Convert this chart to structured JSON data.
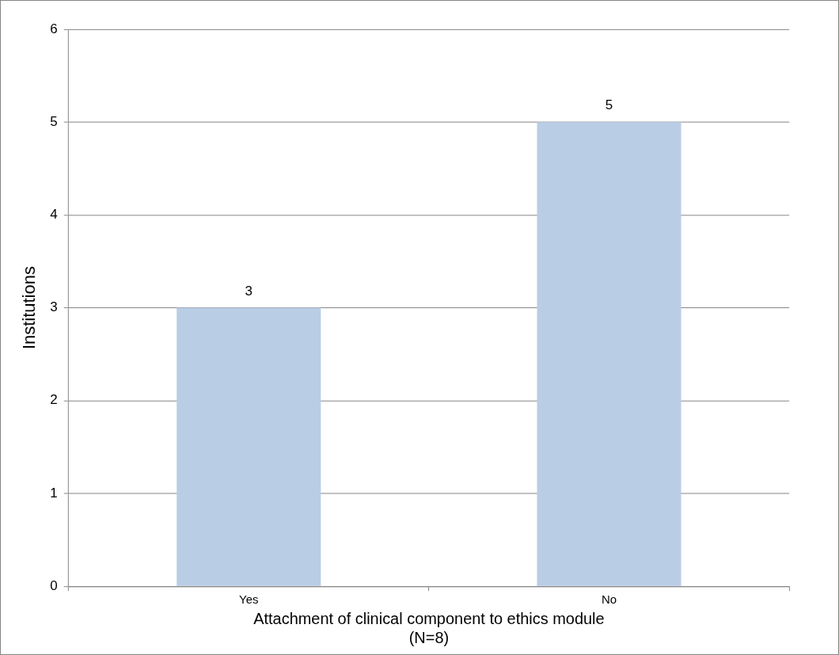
{
  "chart_data": {
    "type": "bar",
    "xlabel": "Attachment of clinical component to ethics module\n(N=8)",
    "ylabel": "Institutions",
    "categories": [
      "Yes",
      "No"
    ],
    "values": [
      3,
      5
    ],
    "color": "#b9cde5",
    "ylim": [
      0,
      6
    ],
    "yticks": [
      0,
      1,
      2,
      3,
      4,
      5,
      6
    ],
    "grid": "y",
    "data_labels": true,
    "legend": false
  }
}
